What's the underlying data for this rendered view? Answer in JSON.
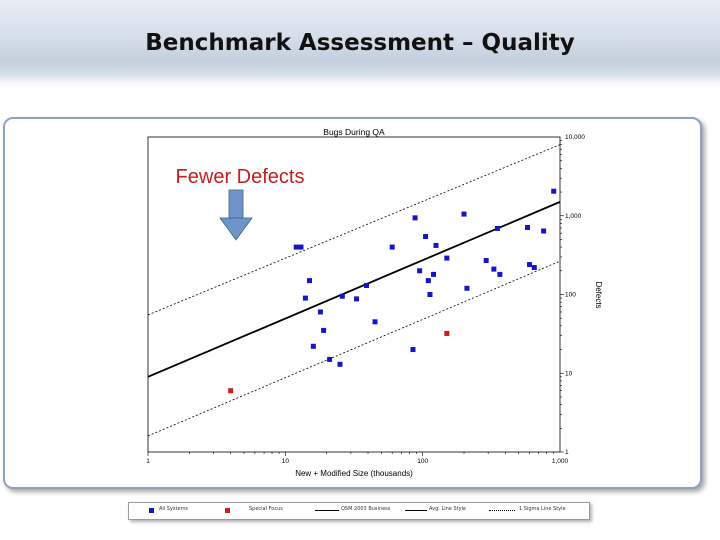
{
  "slide": {
    "title": "Benchmark Assessment – Quality"
  },
  "callout": {
    "text": "Fewer Defects"
  },
  "colors": {
    "blue_points": "#1414c8",
    "red_points": "#cc1c1c",
    "trend": "#000000",
    "arrow": "#6f94c8"
  },
  "chart_data": {
    "type": "scatter",
    "title": "Bugs During QA",
    "xlabel": "New + Modified Size (thousands)",
    "ylabel": "Defects",
    "x_scale": "log",
    "y_scale": "log",
    "xlim": [
      1,
      1000
    ],
    "ylim": [
      1,
      10000
    ],
    "x_ticks": [
      "1",
      "10",
      "100",
      "1,000"
    ],
    "y_ticks": [
      "1",
      "10",
      "100",
      "1,000",
      "10,000"
    ],
    "legend_position": "bottom",
    "legend": [
      "All Systems",
      "Special Focus",
      "QSM 2003 Business",
      "Avg. Line Style",
      "1 Sigma Line Style"
    ],
    "series": [
      {
        "name": "All Systems",
        "color": "#1414c8",
        "points": [
          [
            12,
            400
          ],
          [
            13,
            400
          ],
          [
            15,
            150
          ],
          [
            14,
            90
          ],
          [
            18,
            60
          ],
          [
            16,
            22
          ],
          [
            19,
            35
          ],
          [
            21,
            15
          ],
          [
            26,
            95
          ],
          [
            25,
            13
          ],
          [
            33,
            88
          ],
          [
            39,
            130
          ],
          [
            45,
            45
          ],
          [
            60,
            400
          ],
          [
            85,
            20
          ],
          [
            88,
            940
          ],
          [
            95,
            200
          ],
          [
            105,
            545
          ],
          [
            110,
            150
          ],
          [
            113,
            100
          ],
          [
            120,
            180
          ],
          [
            125,
            420
          ],
          [
            150,
            290
          ],
          [
            210,
            120
          ],
          [
            200,
            1050
          ],
          [
            290,
            270
          ],
          [
            330,
            210
          ],
          [
            350,
            690
          ],
          [
            365,
            180
          ],
          [
            580,
            710
          ],
          [
            600,
            240
          ],
          [
            650,
            220
          ],
          [
            760,
            640
          ],
          [
            900,
            2050
          ]
        ]
      },
      {
        "name": "Special Focus",
        "color": "#cc1c1c",
        "points": [
          [
            4,
            6
          ],
          [
            150,
            32
          ]
        ]
      }
    ],
    "lines": [
      {
        "name": "QSM 2003 Business",
        "style": "solid",
        "points": [
          [
            1,
            9
          ],
          [
            1000,
            1500
          ]
        ]
      },
      {
        "name": "1 Sigma Line Style",
        "style": "dotted",
        "points": [
          [
            1,
            55
          ],
          [
            1000,
            8000
          ]
        ]
      },
      {
        "name": "1 Sigma Line Style",
        "style": "dotted",
        "points": [
          [
            1,
            1.6
          ],
          [
            1000,
            265
          ]
        ]
      }
    ]
  }
}
